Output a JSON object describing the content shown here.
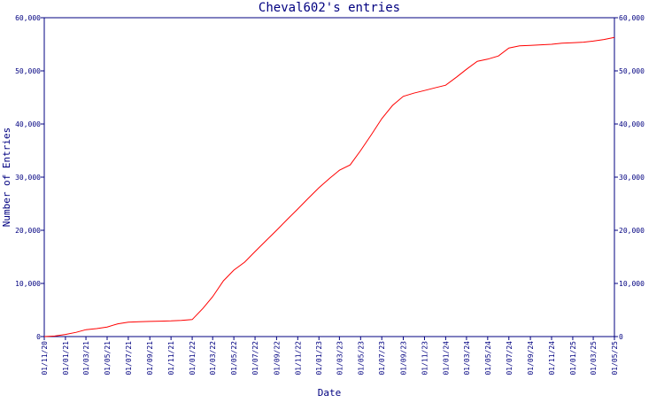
{
  "chart_data": {
    "type": "line",
    "title": "Cheval602's entries",
    "xlabel": "Date",
    "ylabel": "Number of Entries",
    "ylim": [
      0,
      60000
    ],
    "grid": false,
    "y_ticks": [
      "0",
      "10,000",
      "20,000",
      "30,000",
      "40,000",
      "50,000",
      "60,000"
    ],
    "y_tick_values": [
      0,
      10000,
      20000,
      30000,
      40000,
      50000,
      60000
    ],
    "x_ticks": [
      "01/11/20",
      "01/01/21",
      "01/03/21",
      "01/05/21",
      "01/07/21",
      "01/09/21",
      "01/11/21",
      "01/01/22",
      "01/03/22",
      "01/05/22",
      "01/07/22",
      "01/09/22",
      "01/11/22",
      "01/01/23",
      "01/03/23",
      "01/05/23",
      "01/07/23",
      "01/09/23",
      "01/11/23",
      "01/01/24",
      "01/03/24",
      "01/05/24",
      "01/07/24",
      "01/09/24",
      "01/11/24",
      "01/01/25",
      "01/03/25",
      "01/05/25"
    ],
    "series": [
      {
        "color": "#ff0000",
        "points": [
          [
            "01/11/20",
            0
          ],
          [
            "01/12/20",
            100
          ],
          [
            "01/01/21",
            400
          ],
          [
            "01/02/21",
            800
          ],
          [
            "01/03/21",
            1300
          ],
          [
            "01/04/21",
            1500
          ],
          [
            "01/05/21",
            1800
          ],
          [
            "01/06/21",
            2400
          ],
          [
            "01/07/21",
            2700
          ],
          [
            "01/08/21",
            2800
          ],
          [
            "01/09/21",
            2850
          ],
          [
            "01/10/21",
            2900
          ],
          [
            "01/11/21",
            2950
          ],
          [
            "01/12/21",
            3050
          ],
          [
            "01/01/22",
            3200
          ],
          [
            "01/02/22",
            5300
          ],
          [
            "01/03/22",
            7500
          ],
          [
            "01/04/22",
            10500
          ],
          [
            "01/05/22",
            12500
          ],
          [
            "01/06/22",
            14000
          ],
          [
            "01/07/22",
            16000
          ],
          [
            "01/08/22",
            18000
          ],
          [
            "01/09/22",
            20000
          ],
          [
            "01/10/22",
            22000
          ],
          [
            "01/11/22",
            24000
          ],
          [
            "01/12/22",
            26000
          ],
          [
            "01/01/23",
            28000
          ],
          [
            "01/02/23",
            29800
          ],
          [
            "01/03/23",
            31300
          ],
          [
            "01/04/23",
            32300
          ],
          [
            "01/05/23",
            35000
          ],
          [
            "01/06/23",
            38000
          ],
          [
            "01/07/23",
            41000
          ],
          [
            "01/08/23",
            43500
          ],
          [
            "01/09/23",
            45200
          ],
          [
            "01/10/23",
            45800
          ],
          [
            "01/11/23",
            46300
          ],
          [
            "01/12/23",
            46800
          ],
          [
            "01/01/24",
            47300
          ],
          [
            "01/02/24",
            48800
          ],
          [
            "01/03/24",
            50300
          ],
          [
            "01/04/24",
            51800
          ],
          [
            "01/05/24",
            52200
          ],
          [
            "01/06/24",
            52800
          ],
          [
            "01/07/24",
            54300
          ],
          [
            "01/08/24",
            54700
          ],
          [
            "01/09/24",
            54800
          ],
          [
            "01/10/24",
            54900
          ],
          [
            "01/11/24",
            55000
          ],
          [
            "01/12/24",
            55200
          ],
          [
            "01/01/25",
            55300
          ],
          [
            "01/02/25",
            55400
          ],
          [
            "01/03/25",
            55600
          ],
          [
            "01/04/25",
            55900
          ],
          [
            "01/05/25",
            56300
          ]
        ]
      }
    ]
  }
}
